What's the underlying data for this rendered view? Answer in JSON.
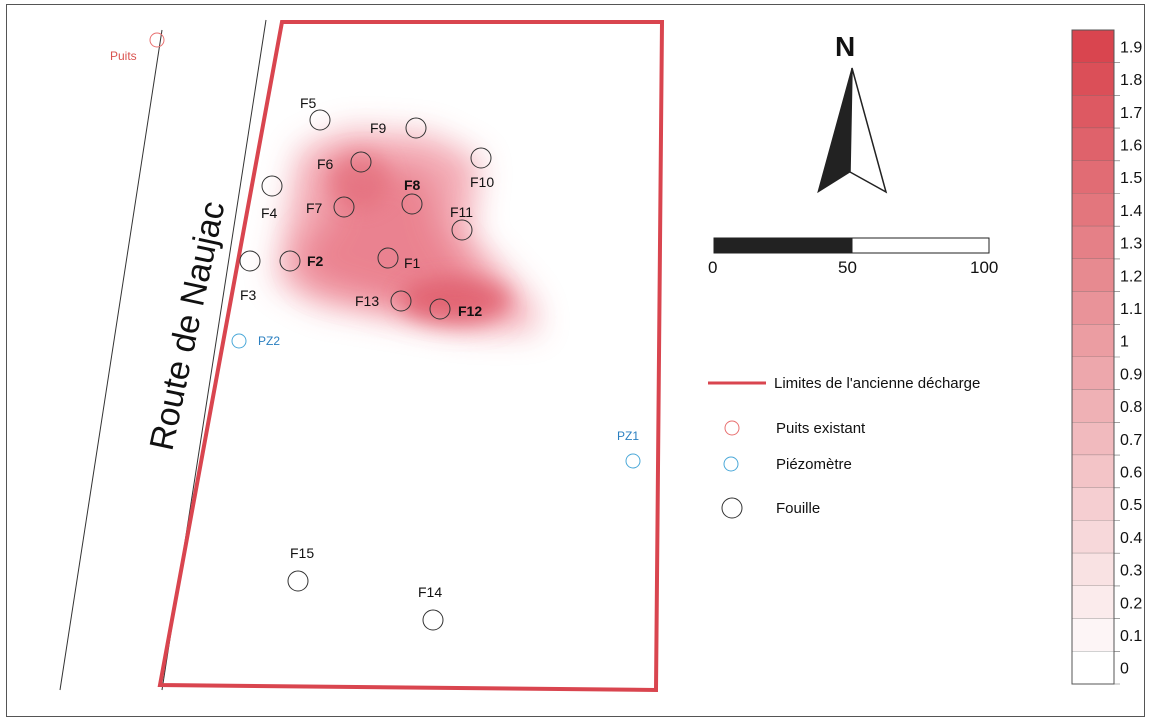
{
  "road_label": "Route de Naujac",
  "north_label": "N",
  "scale_bar": {
    "ticks": [
      "0",
      "50",
      "100"
    ]
  },
  "well": {
    "label": "Puits"
  },
  "piezometers": [
    {
      "id": "PZ1",
      "label": "PZ1"
    },
    {
      "id": "PZ2",
      "label": "PZ2"
    }
  ],
  "excavations": [
    {
      "id": "F1",
      "label": "F1",
      "bold": false
    },
    {
      "id": "F2",
      "label": "F2",
      "bold": true
    },
    {
      "id": "F3",
      "label": "F3",
      "bold": false
    },
    {
      "id": "F4",
      "label": "F4",
      "bold": false
    },
    {
      "id": "F5",
      "label": "F5",
      "bold": false
    },
    {
      "id": "F6",
      "label": "F6",
      "bold": false
    },
    {
      "id": "F7",
      "label": "F7",
      "bold": false
    },
    {
      "id": "F8",
      "label": "F8",
      "bold": true
    },
    {
      "id": "F9",
      "label": "F9",
      "bold": false
    },
    {
      "id": "F10",
      "label": "F10",
      "bold": false
    },
    {
      "id": "F11",
      "label": "F11",
      "bold": false
    },
    {
      "id": "F12",
      "label": "F12",
      "bold": true
    },
    {
      "id": "F13",
      "label": "F13",
      "bold": false
    },
    {
      "id": "F14",
      "label": "F14",
      "bold": false
    },
    {
      "id": "F15",
      "label": "F15",
      "bold": false
    }
  ],
  "legend": {
    "boundary": "Limites de l'ancienne décharge",
    "well": "Puits existant",
    "piezometer": "Piézomètre",
    "excavation": "Fouille"
  },
  "colorbar": {
    "labels": [
      "1.9",
      "1.8",
      "1.7",
      "1.6",
      "1.5",
      "1.4",
      "1.3",
      "1.2",
      "1.1",
      "1",
      "0.9",
      "0.8",
      "0.7",
      "0.6",
      "0.5",
      "0.4",
      "0.3",
      "0.2",
      "0.1",
      "0"
    ],
    "color_low": "#ffffff",
    "color_high": "#d9454f"
  },
  "colors": {
    "boundary": "#d9454f",
    "well": "#e87070",
    "piezometer": "#4aa8d8",
    "excavation": "#222222",
    "plume": "#dc4a5a"
  }
}
